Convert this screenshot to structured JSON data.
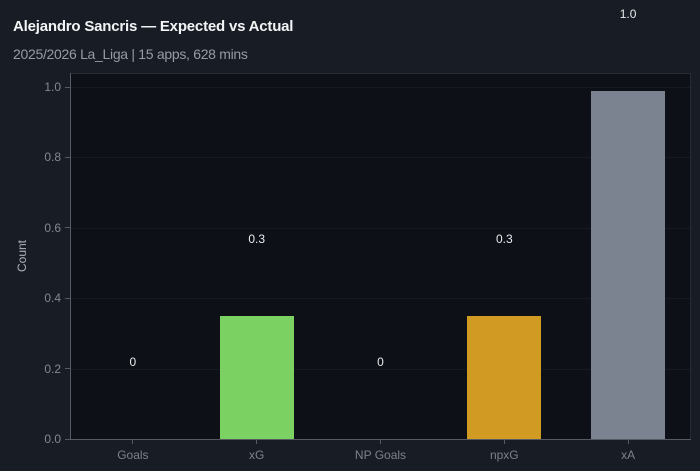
{
  "header": {
    "title": "Alejandro Sancris — Expected vs Actual",
    "subtitle": "2025/2026 La_Liga | 15 apps, 628 mins"
  },
  "chart_data": {
    "type": "bar",
    "title": "Alejandro Sancris — Expected vs Actual",
    "subtitle": "2025/2026 La_Liga | 15 apps, 628 mins",
    "categories": [
      "Goals",
      "xG",
      "NP Goals",
      "npxG",
      "xA"
    ],
    "values": [
      0,
      0.35,
      0,
      0.35,
      0.99
    ],
    "bar_labels": [
      "0",
      "0.3",
      "0",
      "0.3",
      "1.0"
    ],
    "bar_colors": [
      "#7bd162",
      "#7bd162",
      "#d19b23",
      "#d19b23",
      "#7c8390"
    ],
    "xlabel": "",
    "ylabel": "Count",
    "ytick_values": [
      0,
      0.2,
      0.4,
      0.6,
      0.8,
      1.0
    ],
    "ytick_labels": [
      "0.0",
      "0.2",
      "0.4",
      "0.6",
      "0.8",
      "1.0"
    ],
    "ylim": [
      0,
      1.04
    ],
    "grid": "faint horizontal lines at y ticks",
    "legend_position": "none"
  },
  "colors": {
    "figure_background": "#181c24",
    "plot_background": "#0d1017",
    "title_text": "#f3f4f6",
    "subtitle_text": "#989ba1",
    "tick_text": "#85888e",
    "axis_spine": "#565b63",
    "value_label_text": "#eaebed",
    "bar_green": "#7bd162",
    "bar_gold": "#d19b23",
    "bar_grey": "#7c8390"
  }
}
